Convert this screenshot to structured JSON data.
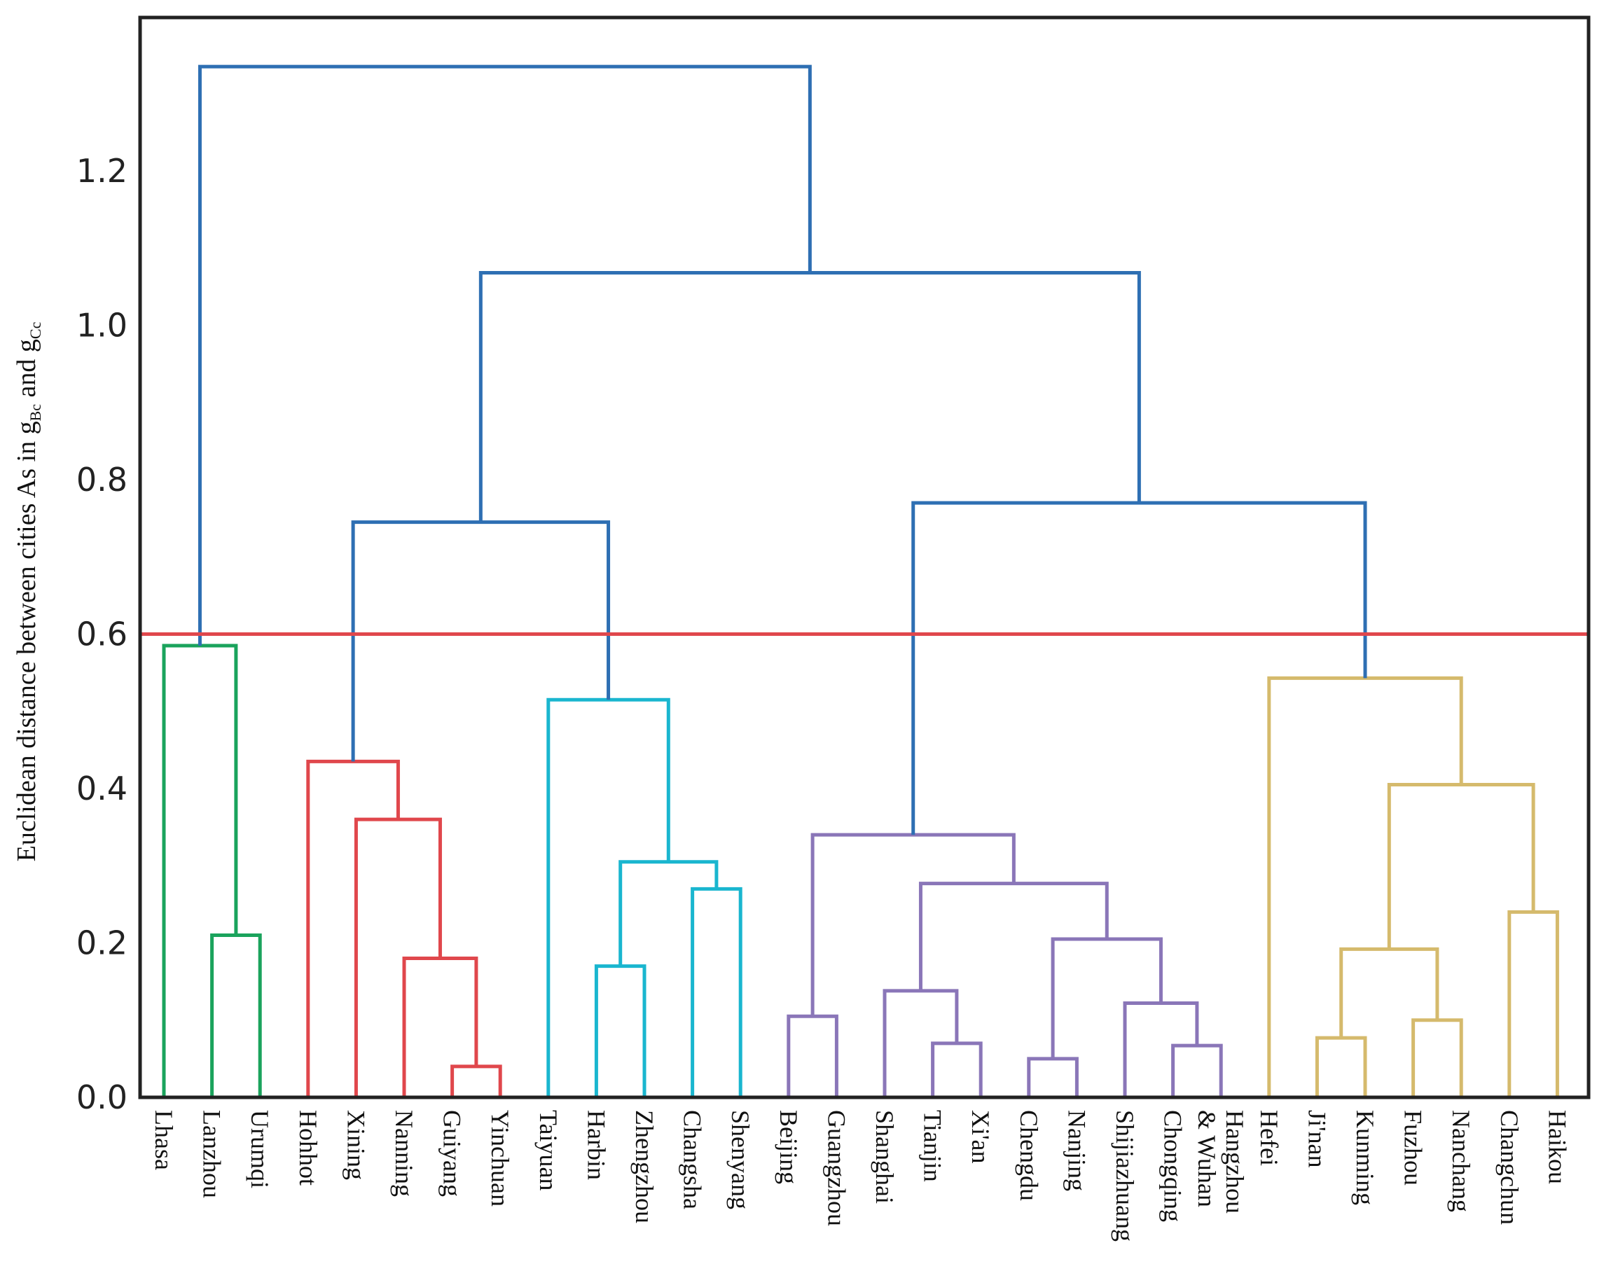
{
  "chart_data": {
    "type": "dendrogram",
    "title": "",
    "xlabel": "",
    "ylabel": {
      "prefix": "Euclidean distance between cities As in g",
      "sub1": "Bc",
      "mid": " and g",
      "sub2": "Cc"
    },
    "ylim": [
      0.0,
      1.4
    ],
    "yticks": [
      0.0,
      0.2,
      0.4,
      0.6,
      0.8,
      1.0,
      1.2
    ],
    "ytick_labels": [
      "0.0",
      "0.2",
      "0.4",
      "0.6",
      "0.8",
      "1.0",
      "1.2"
    ],
    "threshold": 0.6,
    "colors": {
      "green": "#1aa35c",
      "red": "#e0474c",
      "cyan": "#1ab6cf",
      "purple": "#8a76b8",
      "gold": "#d5ba6c",
      "blue": "#2e6fb3",
      "threshold": "#e0474c",
      "axis": "#222222"
    },
    "leaves": [
      "Lhasa",
      "Lanzhou",
      "Urumqi",
      "Hohhot",
      "Xining",
      "Nanning",
      "Guiyang",
      "Yinchuan",
      "Taiyuan",
      "Harbin",
      "Zhengzhou",
      "Changsha",
      "Shenyang",
      "Beijing",
      "Guangzhou",
      "Shanghai",
      "Tianjin",
      "Xi'an",
      "Chengdu",
      "Nanjing",
      "Shijiazhuang",
      "Chongqing",
      "Hangzhou\n& Wuhan",
      "Hefei",
      "Ji'nan",
      "Kunming",
      "Fuzhou",
      "Nanchang",
      "Changchun",
      "Haikou"
    ],
    "merges": [
      {
        "id": "g1",
        "children": [
          "Lanzhou",
          "Urumqi"
        ],
        "height": 0.21,
        "color": "green"
      },
      {
        "id": "g2",
        "children": [
          "Lhasa",
          "g1"
        ],
        "height": 0.585,
        "color": "green"
      },
      {
        "id": "r1",
        "children": [
          "Guiyang",
          "Yinchuan"
        ],
        "height": 0.04,
        "color": "red"
      },
      {
        "id": "r2",
        "children": [
          "Nanning",
          "r1"
        ],
        "height": 0.18,
        "color": "red"
      },
      {
        "id": "r3",
        "children": [
          "Xining",
          "r2"
        ],
        "height": 0.36,
        "color": "red"
      },
      {
        "id": "r4",
        "children": [
          "Hohhot",
          "r3"
        ],
        "height": 0.435,
        "color": "red"
      },
      {
        "id": "c1",
        "children": [
          "Harbin",
          "Zhengzhou"
        ],
        "height": 0.17,
        "color": "cyan"
      },
      {
        "id": "c2",
        "children": [
          "Changsha",
          "Shenyang"
        ],
        "height": 0.27,
        "color": "cyan"
      },
      {
        "id": "c3",
        "children": [
          "c1",
          "c2"
        ],
        "height": 0.305,
        "color": "cyan"
      },
      {
        "id": "c4",
        "children": [
          "Taiyuan",
          "c3"
        ],
        "height": 0.515,
        "color": "cyan"
      },
      {
        "id": "p1",
        "children": [
          "Beijing",
          "Guangzhou"
        ],
        "height": 0.105,
        "color": "purple"
      },
      {
        "id": "p2",
        "children": [
          "Tianjin",
          "Xi'an"
        ],
        "height": 0.07,
        "color": "purple"
      },
      {
        "id": "p3",
        "children": [
          "Shanghai",
          "p2"
        ],
        "height": 0.138,
        "color": "purple"
      },
      {
        "id": "p4",
        "children": [
          "Chengdu",
          "Nanjing"
        ],
        "height": 0.05,
        "color": "purple"
      },
      {
        "id": "p5",
        "children": [
          "Chongqing",
          "Hangzhou\n& Wuhan"
        ],
        "height": 0.067,
        "color": "purple"
      },
      {
        "id": "p6",
        "children": [
          "Shijiazhuang",
          "p5"
        ],
        "height": 0.122,
        "color": "purple"
      },
      {
        "id": "p7",
        "children": [
          "p4",
          "p6"
        ],
        "height": 0.205,
        "color": "purple"
      },
      {
        "id": "p8",
        "children": [
          "p3",
          "p7"
        ],
        "height": 0.277,
        "color": "purple"
      },
      {
        "id": "p9",
        "children": [
          "p1",
          "p8"
        ],
        "height": 0.34,
        "color": "purple"
      },
      {
        "id": "y1",
        "children": [
          "Ji'nan",
          "Kunming"
        ],
        "height": 0.077,
        "color": "gold"
      },
      {
        "id": "y2",
        "children": [
          "Fuzhou",
          "Nanchang"
        ],
        "height": 0.1,
        "color": "gold"
      },
      {
        "id": "y3",
        "children": [
          "y1",
          "y2"
        ],
        "height": 0.192,
        "color": "gold"
      },
      {
        "id": "y4",
        "children": [
          "Changchun",
          "Haikou"
        ],
        "height": 0.24,
        "color": "gold"
      },
      {
        "id": "y5",
        "children": [
          "y3",
          "y4"
        ],
        "height": 0.405,
        "color": "gold"
      },
      {
        "id": "y6",
        "children": [
          "Hefei",
          "y5"
        ],
        "height": 0.543,
        "color": "gold"
      },
      {
        "id": "b1",
        "children": [
          "r4",
          "c4"
        ],
        "height": 0.745,
        "color": "blue"
      },
      {
        "id": "b2",
        "children": [
          "p9",
          "y6"
        ],
        "height": 0.77,
        "color": "blue"
      },
      {
        "id": "b3",
        "children": [
          "b1",
          "b2"
        ],
        "height": 1.068,
        "color": "blue"
      },
      {
        "id": "b4",
        "children": [
          "g2",
          "b3"
        ],
        "height": 1.335,
        "color": "blue"
      }
    ]
  }
}
